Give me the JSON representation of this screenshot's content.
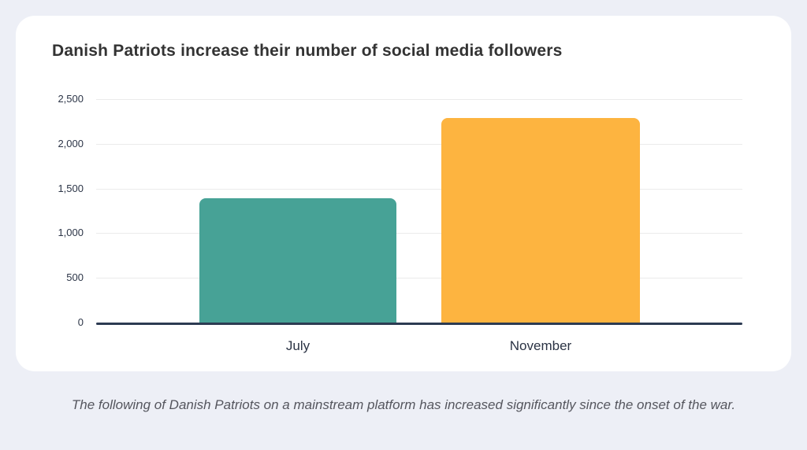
{
  "chart_data": {
    "type": "bar",
    "title": "Danish Patriots increase their number of social media followers",
    "categories": [
      "July",
      "November"
    ],
    "values": [
      1390,
      2290
    ],
    "bar_colors": [
      "#47a296",
      "#fdb440"
    ],
    "xlabel": "",
    "ylabel": "",
    "ylim": [
      0,
      2500
    ],
    "ytick_step": 500,
    "ytick_labels": [
      "0",
      "500",
      "1,000",
      "1,500",
      "2,000",
      "2,500"
    ],
    "grid": "horizontal",
    "legend": "none"
  },
  "caption": "The following of Danish Patriots on a mainstream platform has increased significantly since the onset of the war.",
  "colors": {
    "background": "#edeff6",
    "card": "#ffffff",
    "axis": "#2c3b52",
    "gridline": "#ebebeb",
    "title_text": "#333333",
    "tick_text": "#2c3547",
    "caption_text": "#55565e"
  }
}
